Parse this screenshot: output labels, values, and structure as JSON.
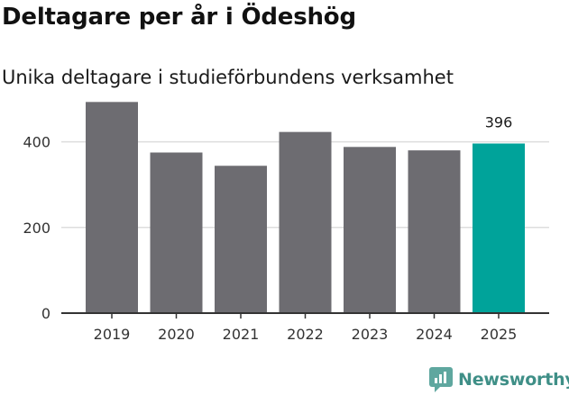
{
  "title": "Deltagare per år i Ödeshög",
  "subtitle": "Unika deltagare i studieförbundens verksamhet",
  "brand": {
    "name": "Newsworthy",
    "icon": "newsworthy-logo-icon",
    "color": "#3f8f87"
  },
  "chart_data": {
    "type": "bar",
    "categories": [
      "2019",
      "2020",
      "2021",
      "2022",
      "2023",
      "2024",
      "2025"
    ],
    "values": [
      493,
      375,
      344,
      423,
      388,
      380,
      396
    ],
    "annotations": [
      {
        "category": "2025",
        "text": "396"
      }
    ],
    "title": "",
    "xlabel": "",
    "ylabel": "",
    "ylim": [
      0,
      500
    ],
    "yticks": [
      0,
      200,
      400
    ],
    "grid": true,
    "legend": "none",
    "colors": {
      "default": "#6d6c71",
      "highlight": "#00a39a",
      "grid": "#dddddd",
      "axis": "#333333"
    },
    "highlight_category": "2025"
  }
}
